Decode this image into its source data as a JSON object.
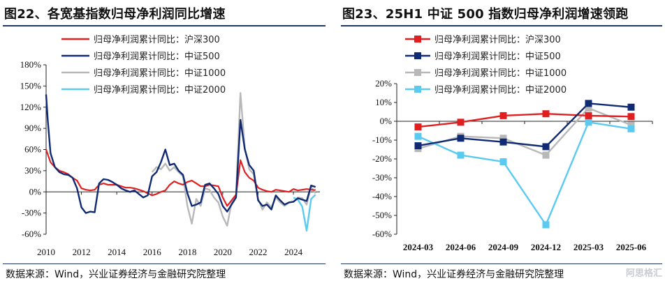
{
  "source": "数据来源：Wind，兴业证券经济与金融研究院整理",
  "watermark": "阿思格汇",
  "left": {
    "title": "图22、各宽基指数归母净利润同比增速",
    "chart_data": {
      "type": "line",
      "title": "",
      "ylim": [
        -60,
        180
      ],
      "yticks": [
        "180%",
        "150%",
        "120%",
        "90%",
        "60%",
        "30%",
        "0%",
        "-30%",
        "-60%"
      ],
      "ytick_values": [
        180,
        150,
        120,
        90,
        60,
        30,
        0,
        -30,
        -60
      ],
      "xlim": [
        2010,
        2025.5
      ],
      "xticks": [
        "2010",
        "2012",
        "2014",
        "2016",
        "2018",
        "2020",
        "2022",
        "2024"
      ],
      "xtick_values": [
        2010,
        2012,
        2014,
        2016,
        2018,
        2020,
        2022,
        2024
      ],
      "legend_position": "top",
      "series": [
        {
          "name": "归母净利润累计同比：沪深300",
          "color": "#e02020",
          "width": 2.2,
          "points": [
            [
              2010,
              60
            ],
            [
              2010.25,
              42
            ],
            [
              2010.5,
              35
            ],
            [
              2010.75,
              30
            ],
            [
              2011,
              28
            ],
            [
              2011.25,
              25
            ],
            [
              2011.5,
              20
            ],
            [
              2011.75,
              16
            ],
            [
              2012,
              5
            ],
            [
              2012.25,
              3
            ],
            [
              2012.5,
              2
            ],
            [
              2012.75,
              3
            ],
            [
              2013,
              10
            ],
            [
              2013.25,
              12
            ],
            [
              2013.5,
              10
            ],
            [
              2013.75,
              10
            ],
            [
              2014,
              10
            ],
            [
              2014.25,
              8
            ],
            [
              2014.5,
              6
            ],
            [
              2014.75,
              6
            ],
            [
              2015,
              5
            ],
            [
              2015.25,
              3
            ],
            [
              2015.5,
              1
            ],
            [
              2015.75,
              -2
            ],
            [
              2016,
              -5
            ],
            [
              2016.25,
              -3
            ],
            [
              2016.5,
              0
            ],
            [
              2016.75,
              2
            ],
            [
              2017,
              10
            ],
            [
              2017.25,
              15
            ],
            [
              2017.5,
              12
            ],
            [
              2017.75,
              10
            ],
            [
              2018,
              14
            ],
            [
              2018.25,
              16
            ],
            [
              2018.5,
              12
            ],
            [
              2018.75,
              8
            ],
            [
              2019,
              8
            ],
            [
              2019.25,
              10
            ],
            [
              2019.5,
              9
            ],
            [
              2019.75,
              8
            ],
            [
              2020,
              -8
            ],
            [
              2020.25,
              -20
            ],
            [
              2020.5,
              -12
            ],
            [
              2020.75,
              -4
            ],
            [
              2021,
              45
            ],
            [
              2021.25,
              28
            ],
            [
              2021.5,
              20
            ],
            [
              2021.75,
              16
            ],
            [
              2022,
              6
            ],
            [
              2022.25,
              3
            ],
            [
              2022.5,
              1
            ],
            [
              2022.75,
              0
            ],
            [
              2023,
              3
            ],
            [
              2023.25,
              2
            ],
            [
              2023.5,
              1
            ],
            [
              2023.75,
              0
            ],
            [
              2024,
              4
            ],
            [
              2024.25,
              2
            ],
            [
              2024.5,
              3
            ],
            [
              2024.75,
              4
            ],
            [
              2025,
              3
            ],
            [
              2025.25,
              2.5
            ]
          ]
        },
        {
          "name": "归母净利润累计同比：中证500",
          "color": "#102a73",
          "width": 2.4,
          "points": [
            [
              2010,
              138
            ],
            [
              2010.1,
              100
            ],
            [
              2010.25,
              55
            ],
            [
              2010.5,
              35
            ],
            [
              2010.75,
              28
            ],
            [
              2011,
              25
            ],
            [
              2011.25,
              24
            ],
            [
              2011.5,
              20
            ],
            [
              2011.75,
              5
            ],
            [
              2012,
              -22
            ],
            [
              2012.25,
              -30
            ],
            [
              2012.5,
              -28
            ],
            [
              2012.75,
              -29
            ],
            [
              2013,
              12
            ],
            [
              2013.25,
              18
            ],
            [
              2013.5,
              17
            ],
            [
              2013.75,
              14
            ],
            [
              2014,
              10
            ],
            [
              2014.25,
              5
            ],
            [
              2014.5,
              2
            ],
            [
              2014.75,
              0
            ],
            [
              2015,
              2
            ],
            [
              2015.25,
              -3
            ],
            [
              2015.5,
              -8
            ],
            [
              2015.75,
              -5
            ],
            [
              2016,
              22
            ],
            [
              2016.25,
              28
            ],
            [
              2016.5,
              42
            ],
            [
              2016.75,
              60
            ],
            [
              2017,
              38
            ],
            [
              2017.25,
              40
            ],
            [
              2017.5,
              30
            ],
            [
              2017.75,
              24
            ],
            [
              2018,
              -2
            ],
            [
              2018.25,
              -20
            ],
            [
              2018.5,
              -18
            ],
            [
              2018.75,
              -15
            ],
            [
              2019,
              10
            ],
            [
              2019.25,
              12
            ],
            [
              2019.5,
              5
            ],
            [
              2019.75,
              -3
            ],
            [
              2020,
              -20
            ],
            [
              2020.25,
              -28
            ],
            [
              2020.5,
              -18
            ],
            [
              2020.75,
              -8
            ],
            [
              2021,
              102
            ],
            [
              2021.25,
              60
            ],
            [
              2021.5,
              38
            ],
            [
              2021.75,
              30
            ],
            [
              2022,
              -12
            ],
            [
              2022.25,
              -20
            ],
            [
              2022.5,
              -18
            ],
            [
              2022.75,
              -25
            ],
            [
              2023,
              -5
            ],
            [
              2023.25,
              -12
            ],
            [
              2023.5,
              -18
            ],
            [
              2023.75,
              -15
            ],
            [
              2024,
              -14
            ],
            [
              2024.25,
              -9
            ],
            [
              2024.5,
              -11
            ],
            [
              2024.75,
              -13
            ],
            [
              2025,
              9
            ],
            [
              2025.25,
              7
            ]
          ]
        },
        {
          "name": "归母净利润累计同比：中证1000",
          "color": "#b8b8b8",
          "width": 2.4,
          "points": [
            [
              2016,
              28
            ],
            [
              2016.25,
              35
            ],
            [
              2016.5,
              32
            ],
            [
              2016.75,
              40
            ],
            [
              2017,
              30
            ],
            [
              2017.25,
              35
            ],
            [
              2017.5,
              28
            ],
            [
              2017.75,
              22
            ],
            [
              2018,
              -20
            ],
            [
              2018.25,
              -45
            ],
            [
              2018.5,
              -10
            ],
            [
              2018.75,
              -20
            ],
            [
              2019,
              5
            ],
            [
              2019.25,
              3
            ],
            [
              2019.5,
              -8
            ],
            [
              2019.75,
              -15
            ],
            [
              2020,
              -35
            ],
            [
              2020.25,
              -48
            ],
            [
              2020.5,
              -15
            ],
            [
              2020.75,
              -5
            ],
            [
              2021,
              140
            ],
            [
              2021.25,
              62
            ],
            [
              2021.5,
              32
            ],
            [
              2021.75,
              25
            ],
            [
              2022,
              -10
            ],
            [
              2022.25,
              -25
            ],
            [
              2022.5,
              -15
            ],
            [
              2022.75,
              -22
            ],
            [
              2023,
              -8
            ],
            [
              2023.25,
              -15
            ],
            [
              2023.5,
              -20
            ],
            [
              2023.75,
              -15
            ],
            [
              2024,
              -14
            ],
            [
              2024.25,
              -8
            ],
            [
              2024.5,
              -9
            ],
            [
              2024.75,
              -18
            ],
            [
              2025,
              7
            ],
            [
              2025.25,
              -2
            ]
          ]
        },
        {
          "name": "归母净利润累计同比：中证2000",
          "color": "#5bcaf0",
          "width": 2.4,
          "points": [
            [
              2024,
              -8
            ],
            [
              2024.25,
              -11
            ],
            [
              2024.5,
              -21
            ],
            [
              2024.75,
              -55
            ],
            [
              2025,
              -10
            ],
            [
              2025.25,
              -4
            ]
          ]
        }
      ]
    }
  },
  "right": {
    "title": "图23、25H1 中证 500 指数归母净利润增速领跑",
    "chart_data": {
      "type": "line",
      "title": "",
      "categories": [
        "2024-03",
        "2024-06",
        "2024-09",
        "2024-12",
        "2025-03",
        "2025-06"
      ],
      "ylim": [
        -60,
        20
      ],
      "yticks": [
        "20%",
        "10%",
        "0%",
        "-10%",
        "-20%",
        "-30%",
        "-40%",
        "-50%",
        "-60%"
      ],
      "ytick_values": [
        20,
        10,
        0,
        -10,
        -20,
        -30,
        -40,
        -50,
        -60
      ],
      "legend_position": "top",
      "series": [
        {
          "name": "归母净利润累计同比：沪深300",
          "color": "#e02020",
          "values": [
            -3,
            -0.5,
            3,
            4,
            3,
            2.5
          ]
        },
        {
          "name": "归母净利润累计同比：中证500",
          "color": "#102a73",
          "values": [
            -13,
            -9,
            -11,
            -13.5,
            9.5,
            7.5
          ]
        },
        {
          "name": "归母净利润累计同比：中证1000",
          "color": "#b8b8b8",
          "values": [
            -14.5,
            -8,
            -9,
            -18,
            7,
            -2
          ]
        },
        {
          "name": "归母净利润累计同比：中证2000",
          "color": "#5bcaf0",
          "values": [
            -8,
            -18,
            -21.5,
            -55,
            -0.5,
            -4
          ]
        }
      ]
    }
  }
}
